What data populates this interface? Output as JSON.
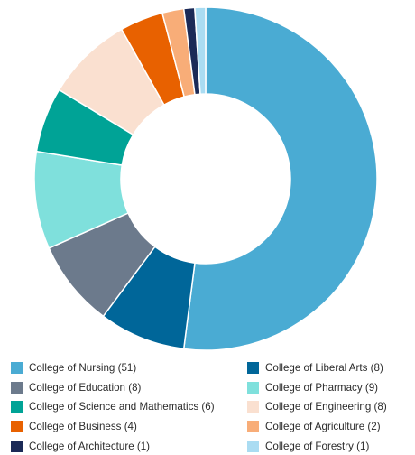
{
  "chart_data": {
    "type": "pie",
    "title": "",
    "donut": true,
    "legend_position": "bottom",
    "slices": [
      {
        "label": "College of Nursing",
        "value": 51,
        "color": "#4aabd3"
      },
      {
        "label": "College of Liberal Arts",
        "value": 8,
        "color": "#006699"
      },
      {
        "label": "College of Education",
        "value": 8,
        "color": "#6c7a8c"
      },
      {
        "label": "College of Pharmacy",
        "value": 9,
        "color": "#7fe0dc"
      },
      {
        "label": "College of Science and Mathematics",
        "value": 6,
        "color": "#00a396"
      },
      {
        "label": "College of Engineering",
        "value": 8,
        "color": "#fae0d0"
      },
      {
        "label": "College of Business",
        "value": 4,
        "color": "#e86100"
      },
      {
        "label": "College of Agriculture",
        "value": 2,
        "color": "#f8ad78"
      },
      {
        "label": "College of Architecture",
        "value": 1,
        "color": "#1b2a57"
      },
      {
        "label": "College of Forestry",
        "value": 1,
        "color": "#aadcf2"
      }
    ]
  },
  "legend": [
    {
      "text": "College of Nursing (51)",
      "color": "#4aabd3"
    },
    {
      "text": "College of Liberal Arts (8)",
      "color": "#006699"
    },
    {
      "text": "College of Education (8)",
      "color": "#6c7a8c"
    },
    {
      "text": "College of Pharmacy (9)",
      "color": "#7fe0dc"
    },
    {
      "text": "College of Science and Mathematics (6)",
      "color": "#00a396"
    },
    {
      "text": "College of Engineering (8)",
      "color": "#fae0d0"
    },
    {
      "text": "College of Business (4)",
      "color": "#e86100"
    },
    {
      "text": "College of Agriculture (2)",
      "color": "#f8ad78"
    },
    {
      "text": "College of Architecture (1)",
      "color": "#1b2a57"
    },
    {
      "text": "College of Forestry (1)",
      "color": "#aadcf2"
    }
  ]
}
